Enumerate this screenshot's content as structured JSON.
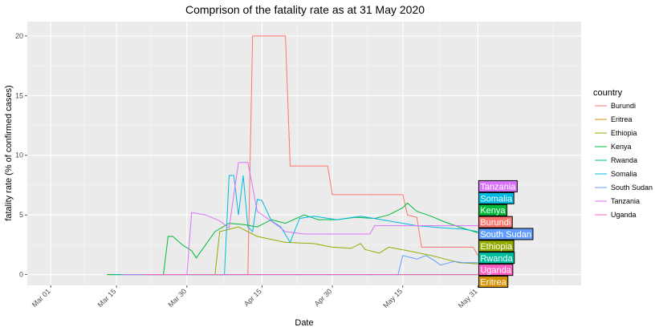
{
  "chart_data": {
    "type": "line",
    "title": "Comprison of the fatality rate as at 31 May 2020",
    "xlabel": "Date",
    "ylabel": "fatality rate (% of confirmed cases)",
    "x_ticks": [
      "Mar 01",
      "Mar 15",
      "Mar 30",
      "Apr 15",
      "Apr 30",
      "May 15",
      "May 31"
    ],
    "y_ticks": [
      "0",
      "5",
      "10",
      "15",
      "20"
    ],
    "ylim": [
      -0.9,
      21.2
    ],
    "xlim": [
      "2020-02-25",
      "2020-06-22"
    ],
    "grid": true,
    "legend": {
      "title": "country",
      "position": "right"
    },
    "series": [
      {
        "name": "Burundi",
        "color": "#F8766D",
        "points": [
          [
            "2020-03-31",
            0
          ],
          [
            "2020-04-12",
            0
          ],
          [
            "2020-04-13",
            20
          ],
          [
            "2020-04-20",
            20
          ],
          [
            "2020-04-21",
            9.1
          ],
          [
            "2020-04-29",
            9.1
          ],
          [
            "2020-04-30",
            6.7
          ],
          [
            "2020-05-15",
            6.7
          ],
          [
            "2020-05-16",
            5.0
          ],
          [
            "2020-05-18",
            4.8
          ],
          [
            "2020-05-19",
            2.3
          ],
          [
            "2020-05-30",
            2.3
          ],
          [
            "2020-05-31",
            1.6
          ]
        ]
      },
      {
        "name": "Eritrea",
        "color": "#D39200",
        "points": [
          [
            "2020-03-21",
            0
          ],
          [
            "2020-05-31",
            0
          ]
        ]
      },
      {
        "name": "Ethiopia",
        "color": "#93AA00",
        "points": [
          [
            "2020-03-13",
            0
          ],
          [
            "2020-04-05",
            0
          ],
          [
            "2020-04-06",
            3.6
          ],
          [
            "2020-04-10",
            4.0
          ],
          [
            "2020-04-14",
            3.2
          ],
          [
            "2020-04-20",
            2.7
          ],
          [
            "2020-04-26",
            2.6
          ],
          [
            "2020-04-30",
            2.3
          ],
          [
            "2020-05-04",
            2.2
          ],
          [
            "2020-05-06",
            2.6
          ],
          [
            "2020-05-07",
            2.1
          ],
          [
            "2020-05-10",
            1.8
          ],
          [
            "2020-05-12",
            2.3
          ],
          [
            "2020-05-16",
            2.0
          ],
          [
            "2020-05-21",
            1.6
          ],
          [
            "2020-05-24",
            1.3
          ],
          [
            "2020-05-27",
            1.0
          ],
          [
            "2020-05-31",
            0.9
          ]
        ]
      },
      {
        "name": "Kenya",
        "color": "#00BA38",
        "points": [
          [
            "2020-03-13",
            0
          ],
          [
            "2020-03-25",
            0
          ],
          [
            "2020-03-26",
            3.2
          ],
          [
            "2020-03-27",
            3.2
          ],
          [
            "2020-03-29",
            2.5
          ],
          [
            "2020-03-31",
            2.0
          ],
          [
            "2020-04-01",
            1.4
          ],
          [
            "2020-04-03",
            2.5
          ],
          [
            "2020-04-05",
            3.6
          ],
          [
            "2020-04-08",
            4.3
          ],
          [
            "2020-04-11",
            4.2
          ],
          [
            "2020-04-14",
            4.0
          ],
          [
            "2020-04-17",
            4.6
          ],
          [
            "2020-04-20",
            4.3
          ],
          [
            "2020-04-24",
            5.0
          ],
          [
            "2020-04-27",
            4.6
          ],
          [
            "2020-05-01",
            4.6
          ],
          [
            "2020-05-05",
            4.8
          ],
          [
            "2020-05-09",
            4.7
          ],
          [
            "2020-05-12",
            5.0
          ],
          [
            "2020-05-15",
            5.6
          ],
          [
            "2020-05-16",
            6.0
          ],
          [
            "2020-05-18",
            5.3
          ],
          [
            "2020-05-21",
            4.9
          ],
          [
            "2020-05-24",
            4.4
          ],
          [
            "2020-05-27",
            4.0
          ],
          [
            "2020-05-31",
            3.5
          ]
        ]
      },
      {
        "name": "Rwanda",
        "color": "#00C19F",
        "points": [
          [
            "2020-03-14",
            0
          ],
          [
            "2020-05-31",
            0
          ]
        ]
      },
      {
        "name": "Somalia",
        "color": "#00B9E3",
        "points": [
          [
            "2020-03-16",
            0
          ],
          [
            "2020-04-07",
            0
          ],
          [
            "2020-04-08",
            8.3
          ],
          [
            "2020-04-09",
            8.3
          ],
          [
            "2020-04-10",
            5.0
          ],
          [
            "2020-04-11",
            8.3
          ],
          [
            "2020-04-12",
            4.0
          ],
          [
            "2020-04-13",
            3.6
          ],
          [
            "2020-04-14",
            6.3
          ],
          [
            "2020-04-15",
            6.2
          ],
          [
            "2020-04-17",
            4.5
          ],
          [
            "2020-04-19",
            4.0
          ],
          [
            "2020-04-21",
            2.7
          ],
          [
            "2020-04-23",
            4.7
          ],
          [
            "2020-04-26",
            4.9
          ],
          [
            "2020-05-01",
            4.6
          ],
          [
            "2020-05-06",
            4.9
          ],
          [
            "2020-05-12",
            4.5
          ],
          [
            "2020-05-18",
            4.1
          ],
          [
            "2020-05-24",
            3.9
          ],
          [
            "2020-05-28",
            3.8
          ],
          [
            "2020-05-31",
            3.6
          ]
        ]
      },
      {
        "name": "South Sudan",
        "color": "#619CFF",
        "points": [
          [
            "2020-04-05",
            0
          ],
          [
            "2020-05-14",
            0
          ],
          [
            "2020-05-15",
            1.6
          ],
          [
            "2020-05-18",
            1.3
          ],
          [
            "2020-05-20",
            1.6
          ],
          [
            "2020-05-22",
            1.1
          ],
          [
            "2020-05-23",
            0.8
          ],
          [
            "2020-05-26",
            1.1
          ],
          [
            "2020-05-28",
            1.0
          ],
          [
            "2020-05-31",
            1.0
          ]
        ]
      },
      {
        "name": "Tanzania",
        "color": "#DB72FB",
        "points": [
          [
            "2020-03-16",
            0
          ],
          [
            "2020-03-30",
            0
          ],
          [
            "2020-03-31",
            5.2
          ],
          [
            "2020-04-03",
            5.0
          ],
          [
            "2020-04-06",
            4.5
          ],
          [
            "2020-04-08",
            3.9
          ],
          [
            "2020-04-10",
            9.4
          ],
          [
            "2020-04-12",
            9.4
          ],
          [
            "2020-04-14",
            5.3
          ],
          [
            "2020-04-18",
            4.2
          ],
          [
            "2020-04-20",
            3.6
          ],
          [
            "2020-04-24",
            3.4
          ],
          [
            "2020-05-08",
            3.4
          ],
          [
            "2020-05-09",
            4.1
          ],
          [
            "2020-05-31",
            4.1
          ]
        ]
      },
      {
        "name": "Uganda",
        "color": "#FF61C3",
        "points": [
          [
            "2020-03-21",
            0
          ],
          [
            "2020-05-31",
            0
          ]
        ]
      }
    ],
    "end_labels": [
      {
        "name": "Tanzania",
        "y": 7.4
      },
      {
        "name": "Somalia",
        "y": 6.4
      },
      {
        "name": "Kenya",
        "y": 5.4
      },
      {
        "name": "Burundi",
        "y": 4.4
      },
      {
        "name": "South Sudan",
        "y": 3.4
      },
      {
        "name": "Ethiopia",
        "y": 2.4
      },
      {
        "name": "Rwanda",
        "y": 1.4
      },
      {
        "name": "Uganda",
        "y": 0.4
      },
      {
        "name": "Eritrea",
        "y": -0.6
      }
    ]
  }
}
